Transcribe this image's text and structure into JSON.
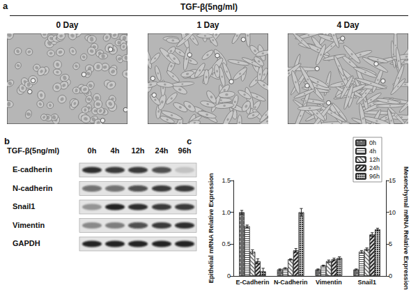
{
  "panel_a": {
    "label": "a",
    "title": "TGF-β(5ng/ml)",
    "images": [
      "0 Day",
      "1 Day",
      "4 Day"
    ]
  },
  "panel_b": {
    "label": "b",
    "treatment": "TGF-β(5ng/ml)",
    "lanes": [
      "0h",
      "4h",
      "12h",
      "24h",
      "96h"
    ],
    "rows": [
      {
        "name": "E-cadherin",
        "bands": [
          0.85,
          0.8,
          0.8,
          0.7,
          0.15
        ]
      },
      {
        "name": "N-cadherin",
        "bands": [
          0.55,
          0.55,
          0.7,
          0.8,
          0.8
        ]
      },
      {
        "name": "Snail1",
        "bands": [
          0.35,
          0.9,
          0.85,
          0.8,
          0.8
        ]
      },
      {
        "name": "Vimentin",
        "bands": [
          0.4,
          0.45,
          0.7,
          0.8,
          0.85
        ]
      },
      {
        "name": "GAPDH",
        "bands": [
          0.9,
          0.9,
          0.9,
          0.9,
          0.9
        ]
      }
    ]
  },
  "panel_c": {
    "label": "c"
  },
  "chart_data": {
    "type": "bar",
    "categories": [
      "E-Cadherin",
      "N-Cadherin",
      "Vimentin",
      "Snail1"
    ],
    "ylabel": "Epithelial mRNA Relative Expression",
    "y2label": "Mesenchymal mRNA Relative Expression",
    "ylim": [
      0,
      1.5
    ],
    "yticks": [
      0,
      0.5,
      {
        "value": 1,
        "label": "1.0"
      },
      1.5
    ],
    "y2lim": [
      0,
      15
    ],
    "y2ticks": [
      0,
      5,
      10,
      15
    ],
    "grid": false,
    "legend": "upper right",
    "series": [
      {
        "name": "0h",
        "color": "#6a6a6a",
        "axis": "y",
        "values": [
          1.0,
          null,
          null,
          null
        ],
        "errors": [
          0.03,
          null,
          null,
          null
        ]
      },
      {
        "name": "4h",
        "color": "#ffffff",
        "axis": "y",
        "values": [
          0.78,
          null,
          null,
          null
        ],
        "errors": [
          0.02,
          null,
          null,
          null
        ]
      },
      {
        "name": "12h",
        "color": "#eeeeee",
        "axis": "y",
        "values": [
          0.38,
          null,
          null,
          null
        ],
        "errors": [
          0.03,
          null,
          null,
          null
        ]
      },
      {
        "name": "24h",
        "color": "#dddddd",
        "axis": "y",
        "values": [
          0.23,
          null,
          null,
          null
        ],
        "errors": [
          0.04,
          null,
          null,
          null
        ]
      },
      {
        "name": "96h",
        "color": "#d5d5d5",
        "axis": "y",
        "values": [
          0.07,
          null,
          null,
          null
        ],
        "errors": [
          0.05,
          null,
          null,
          null
        ]
      },
      {
        "name": "0h",
        "color": "#6a6a6a",
        "axis": "y2",
        "values": [
          null,
          1.0,
          1.0,
          1.0
        ],
        "errors": [
          null,
          0.1,
          0.1,
          0.1
        ]
      },
      {
        "name": "4h",
        "color": "#ffffff",
        "axis": "y2",
        "values": [
          null,
          1.2,
          1.6,
          3.8
        ],
        "errors": [
          null,
          0.1,
          0.1,
          0.2
        ]
      },
      {
        "name": "12h",
        "color": "#eeeeee",
        "axis": "y2",
        "values": [
          null,
          2.6,
          2.3,
          4.2
        ],
        "errors": [
          null,
          0.1,
          0.2,
          0.2
        ]
      },
      {
        "name": "24h",
        "color": "#dddddd",
        "axis": "y2",
        "values": [
          null,
          4.0,
          2.6,
          6.5
        ],
        "errors": [
          null,
          0.3,
          0.2,
          0.3
        ]
      },
      {
        "name": "96h",
        "color": "#d5d5d5",
        "axis": "y2",
        "values": [
          null,
          10.0,
          2.8,
          7.3
        ],
        "errors": [
          null,
          0.6,
          0.2,
          0.2
        ]
      }
    ]
  }
}
